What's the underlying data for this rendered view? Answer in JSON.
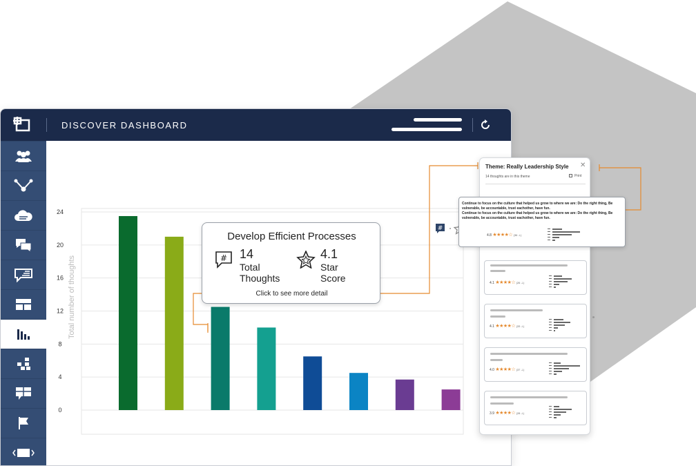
{
  "app": {
    "title": "DISCOVER DASHBOARD"
  },
  "sidebar": {
    "items": [
      {
        "icon": "users-icon",
        "active": false
      },
      {
        "icon": "network-icon",
        "active": false
      },
      {
        "icon": "cloud-icon",
        "active": false
      },
      {
        "icon": "chat-bubbles-icon",
        "active": false
      },
      {
        "icon": "thought-bubble-icon",
        "active": false
      },
      {
        "icon": "layout-icon",
        "active": false
      },
      {
        "icon": "bar-chart-icon",
        "active": true
      },
      {
        "icon": "grid-icon",
        "active": false
      },
      {
        "icon": "table-icon",
        "active": false
      },
      {
        "icon": "flag-icon",
        "active": false
      },
      {
        "icon": "slides-icon",
        "active": false
      }
    ]
  },
  "chart_data": {
    "type": "bar",
    "ylabel": "Total number of thoughts",
    "ylim": [
      0,
      24
    ],
    "yticks": [
      0,
      4,
      8,
      12,
      16,
      20,
      24
    ],
    "grid": true,
    "values": [
      23.5,
      21,
      12.5,
      10,
      6.5,
      4.5,
      3.7,
      2.5
    ],
    "colors": [
      "#0a6b2e",
      "#8aab18",
      "#0a7a6a",
      "#14a090",
      "#0f4c96",
      "#0b84c4",
      "#6a3c92",
      "#8c3c96"
    ]
  },
  "popup": {
    "title": "Develop Efficient Processes",
    "thoughts_value": "14",
    "thoughts_label_1": "Total",
    "thoughts_label_2": "Thoughts",
    "star_value": "4.1",
    "star_label_1": "Star",
    "star_label_2": "Score",
    "link": "Click to see more detail"
  },
  "panel": {
    "title": "Theme: Really Leadership Style",
    "subtitle": "14 thoughts are in this theme",
    "print": "Print",
    "close": "✕"
  },
  "expanded_thought": {
    "line1": "Continue to focus on the culture that helped us grow to where we are: Do the right thing, Be vulnerable, be accountable, trust eachother, have fun.",
    "line2": "Continue to focus on the culture that helped us grow to where we are: Do the right thing, Be vulnerable, be accountable, trust eachother, have fun.",
    "score": "4.8",
    "stars": "★★★★☆",
    "count": "(36 ⊥)"
  },
  "cards": [
    {
      "score": "4.1",
      "stars": "★★★★☆",
      "count": "(26 ⊥)"
    },
    {
      "score": "4.1",
      "stars": "★★★★☆",
      "count": "(33 ⊥)"
    },
    {
      "score": "4.0",
      "stars": "★★★★☆",
      "count": "(37 ⊥)"
    },
    {
      "score": "3.9",
      "stars": "★★★★☆",
      "count": "(28 ⊥)"
    }
  ],
  "theme": {
    "navy": "#1b2a4a",
    "sidebar": "#2d4468",
    "accent": "#e58a2e",
    "hex_gray": "#c4c4c4"
  }
}
